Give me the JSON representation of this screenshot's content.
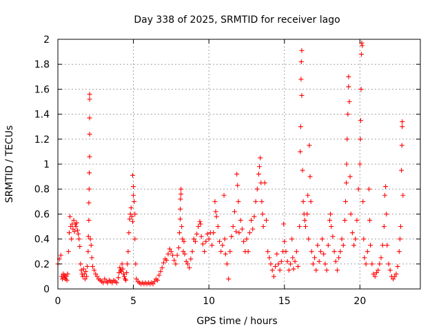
{
  "chart_data": {
    "type": "scatter",
    "title": "Day 338 of 2025, SRMTID for receiver lago",
    "xlabel": "GPS time / hours",
    "ylabel": "SRMTID / TECUs",
    "xlim": [
      0,
      24
    ],
    "ylim": [
      0,
      2
    ],
    "x_ticks": [
      0,
      5,
      10,
      15,
      20
    ],
    "x_tick_labels": [
      "0",
      "5",
      "10",
      "15",
      "20"
    ],
    "y_ticks": [
      0,
      0.2,
      0.4,
      0.6,
      0.8,
      1,
      1.2,
      1.4,
      1.6,
      1.8,
      2
    ],
    "y_tick_labels": [
      "0",
      "0.2",
      "0.4",
      "0.6",
      "0.8",
      "1",
      "1.2",
      "1.4",
      "1.6",
      "1.8",
      "2"
    ],
    "grid": true,
    "marker": "plus",
    "marker_color": "#ff0000",
    "series": [
      {
        "name": "SRMTID",
        "points": [
          [
            0.0,
            0.2
          ],
          [
            0.1,
            0.24
          ],
          [
            0.2,
            0.27
          ],
          [
            0.25,
            0.1
          ],
          [
            0.3,
            0.08
          ],
          [
            0.35,
            0.12
          ],
          [
            0.4,
            0.09
          ],
          [
            0.45,
            0.11
          ],
          [
            0.5,
            0.08
          ],
          [
            0.55,
            0.1
          ],
          [
            0.6,
            0.07
          ],
          [
            0.65,
            0.12
          ],
          [
            0.7,
            0.3
          ],
          [
            0.75,
            0.45
          ],
          [
            0.8,
            0.58
          ],
          [
            0.85,
            0.5
          ],
          [
            0.9,
            0.4
          ],
          [
            0.95,
            0.52
          ],
          [
            1.0,
            0.48
          ],
          [
            1.05,
            0.55
          ],
          [
            1.1,
            0.46
          ],
          [
            1.15,
            0.52
          ],
          [
            1.2,
            0.5
          ],
          [
            1.25,
            0.53
          ],
          [
            1.3,
            0.47
          ],
          [
            1.35,
            0.44
          ],
          [
            1.4,
            0.4
          ],
          [
            1.45,
            0.34
          ],
          [
            1.5,
            0.2
          ],
          [
            1.55,
            0.15
          ],
          [
            1.6,
            0.12
          ],
          [
            1.65,
            0.1
          ],
          [
            1.7,
            0.16
          ],
          [
            1.75,
            0.12
          ],
          [
            1.8,
            0.08
          ],
          [
            1.85,
            0.14
          ],
          [
            1.9,
            0.1
          ],
          [
            1.95,
            0.18
          ],
          [
            2.0,
            0.3
          ],
          [
            2.02,
            0.42
          ],
          [
            2.05,
            0.55
          ],
          [
            2.05,
            0.69
          ],
          [
            2.07,
            0.8
          ],
          [
            2.08,
            0.93
          ],
          [
            2.1,
            1.06
          ],
          [
            2.1,
            1.24
          ],
          [
            2.1,
            1.37
          ],
          [
            2.1,
            1.52
          ],
          [
            2.1,
            1.56
          ],
          [
            2.15,
            0.4
          ],
          [
            2.2,
            0.35
          ],
          [
            2.25,
            0.25
          ],
          [
            2.3,
            0.18
          ],
          [
            2.4,
            0.15
          ],
          [
            2.5,
            0.12
          ],
          [
            2.6,
            0.1
          ],
          [
            2.7,
            0.08
          ],
          [
            2.8,
            0.07
          ],
          [
            2.9,
            0.06
          ],
          [
            3.0,
            0.05
          ],
          [
            3.1,
            0.08
          ],
          [
            3.2,
            0.06
          ],
          [
            3.3,
            0.05
          ],
          [
            3.4,
            0.07
          ],
          [
            3.5,
            0.06
          ],
          [
            3.6,
            0.05
          ],
          [
            3.7,
            0.07
          ],
          [
            3.8,
            0.06
          ],
          [
            3.9,
            0.05
          ],
          [
            4.0,
            0.09
          ],
          [
            4.05,
            0.13
          ],
          [
            4.1,
            0.17
          ],
          [
            4.15,
            0.15
          ],
          [
            4.2,
            0.14
          ],
          [
            4.25,
            0.2
          ],
          [
            4.3,
            0.16
          ],
          [
            4.35,
            0.12
          ],
          [
            4.4,
            0.1
          ],
          [
            4.45,
            0.08
          ],
          [
            4.5,
            0.07
          ],
          [
            4.55,
            0.13
          ],
          [
            4.6,
            0.2
          ],
          [
            4.65,
            0.3
          ],
          [
            4.7,
            0.45
          ],
          [
            4.75,
            0.56
          ],
          [
            4.8,
            0.6
          ],
          [
            4.85,
            0.65
          ],
          [
            4.9,
            0.58
          ],
          [
            4.95,
            0.54
          ],
          [
            4.95,
            0.91
          ],
          [
            5.0,
            0.82
          ],
          [
            5.0,
            0.75
          ],
          [
            5.05,
            0.7
          ],
          [
            5.1,
            0.6
          ],
          [
            5.1,
            0.4
          ],
          [
            5.15,
            0.2
          ],
          [
            5.2,
            0.08
          ],
          [
            5.3,
            0.06
          ],
          [
            5.4,
            0.05
          ],
          [
            5.5,
            0.04
          ],
          [
            5.6,
            0.05
          ],
          [
            5.7,
            0.04
          ],
          [
            5.8,
            0.05
          ],
          [
            5.9,
            0.04
          ],
          [
            6.0,
            0.05
          ],
          [
            6.1,
            0.04
          ],
          [
            6.2,
            0.05
          ],
          [
            6.3,
            0.04
          ],
          [
            6.4,
            0.06
          ],
          [
            6.5,
            0.08
          ],
          [
            6.6,
            0.07
          ],
          [
            6.7,
            0.11
          ],
          [
            6.8,
            0.14
          ],
          [
            6.9,
            0.17
          ],
          [
            7.0,
            0.21
          ],
          [
            7.1,
            0.24
          ],
          [
            7.2,
            0.23
          ],
          [
            7.3,
            0.28
          ],
          [
            7.4,
            0.32
          ],
          [
            7.5,
            0.3
          ],
          [
            7.6,
            0.27
          ],
          [
            7.7,
            0.23
          ],
          [
            7.8,
            0.2
          ],
          [
            7.9,
            0.27
          ],
          [
            8.0,
            0.33
          ],
          [
            8.05,
            0.45
          ],
          [
            8.1,
            0.56
          ],
          [
            8.1,
            0.64
          ],
          [
            8.12,
            0.72
          ],
          [
            8.15,
            0.76
          ],
          [
            8.15,
            0.8
          ],
          [
            8.2,
            0.5
          ],
          [
            8.25,
            0.4
          ],
          [
            8.3,
            0.3
          ],
          [
            8.35,
            0.38
          ],
          [
            8.4,
            0.28
          ],
          [
            8.5,
            0.22
          ],
          [
            8.6,
            0.2
          ],
          [
            8.7,
            0.17
          ],
          [
            8.8,
            0.24
          ],
          [
            8.9,
            0.3
          ],
          [
            9.0,
            0.4
          ],
          [
            9.1,
            0.38
          ],
          [
            9.2,
            0.44
          ],
          [
            9.3,
            0.5
          ],
          [
            9.4,
            0.54
          ],
          [
            9.45,
            0.52
          ],
          [
            9.5,
            0.42
          ],
          [
            9.6,
            0.36
          ],
          [
            9.7,
            0.3
          ],
          [
            9.8,
            0.38
          ],
          [
            9.9,
            0.44
          ],
          [
            10.0,
            0.4
          ],
          [
            10.1,
            0.45
          ],
          [
            10.2,
            0.35
          ],
          [
            10.3,
            0.45
          ],
          [
            10.4,
            0.7
          ],
          [
            10.45,
            0.62
          ],
          [
            10.5,
            0.58
          ],
          [
            10.6,
            0.5
          ],
          [
            10.7,
            0.38
          ],
          [
            10.8,
            0.3
          ],
          [
            10.9,
            0.35
          ],
          [
            11.0,
            0.75
          ],
          [
            11.05,
            0.4
          ],
          [
            11.1,
            0.28
          ],
          [
            11.2,
            0.2
          ],
          [
            11.3,
            0.08
          ],
          [
            11.4,
            0.3
          ],
          [
            11.5,
            0.42
          ],
          [
            11.6,
            0.5
          ],
          [
            11.7,
            0.62
          ],
          [
            11.8,
            0.46
          ],
          [
            11.85,
            0.92
          ],
          [
            11.9,
            0.83
          ],
          [
            11.95,
            0.7
          ],
          [
            12.0,
            0.45
          ],
          [
            12.1,
            0.55
          ],
          [
            12.2,
            0.48
          ],
          [
            12.3,
            0.38
          ],
          [
            12.4,
            0.3
          ],
          [
            12.5,
            0.4
          ],
          [
            12.6,
            0.3
          ],
          [
            12.7,
            0.45
          ],
          [
            12.8,
            0.55
          ],
          [
            12.9,
            0.48
          ],
          [
            13.0,
            0.58
          ],
          [
            13.1,
            0.7
          ],
          [
            13.2,
            0.8
          ],
          [
            13.3,
            0.92
          ],
          [
            13.35,
            0.98
          ],
          [
            13.4,
            1.05
          ],
          [
            13.45,
            0.85
          ],
          [
            13.5,
            0.7
          ],
          [
            13.55,
            0.6
          ],
          [
            13.6,
            0.5
          ],
          [
            13.7,
            0.85
          ],
          [
            13.8,
            0.55
          ],
          [
            13.9,
            0.3
          ],
          [
            14.0,
            0.25
          ],
          [
            14.1,
            0.2
          ],
          [
            14.2,
            0.15
          ],
          [
            14.3,
            0.1
          ],
          [
            14.4,
            0.18
          ],
          [
            14.5,
            0.28
          ],
          [
            14.6,
            0.2
          ],
          [
            14.7,
            0.15
          ],
          [
            14.8,
            0.22
          ],
          [
            14.9,
            0.3
          ],
          [
            14.95,
            0.52
          ],
          [
            15.0,
            0.38
          ],
          [
            15.1,
            0.3
          ],
          [
            15.2,
            0.22
          ],
          [
            15.3,
            0.15
          ],
          [
            15.4,
            0.2
          ],
          [
            15.5,
            0.4
          ],
          [
            15.55,
            0.25
          ],
          [
            15.6,
            0.16
          ],
          [
            15.7,
            0.22
          ],
          [
            15.8,
            0.3
          ],
          [
            15.9,
            0.18
          ],
          [
            16.0,
            0.5
          ],
          [
            16.05,
            1.1
          ],
          [
            16.08,
            1.3
          ],
          [
            16.1,
            1.68
          ],
          [
            16.12,
            1.82
          ],
          [
            16.15,
            1.91
          ],
          [
            16.15,
            1.55
          ],
          [
            16.2,
            0.95
          ],
          [
            16.25,
            0.7
          ],
          [
            16.3,
            0.6
          ],
          [
            16.35,
            0.55
          ],
          [
            16.4,
            0.5
          ],
          [
            16.5,
            0.6
          ],
          [
            16.55,
            0.75
          ],
          [
            16.6,
            0.4
          ],
          [
            16.65,
            1.15
          ],
          [
            16.7,
            0.9
          ],
          [
            16.75,
            0.7
          ],
          [
            16.8,
            0.3
          ],
          [
            16.9,
            0.2
          ],
          [
            17.0,
            0.25
          ],
          [
            17.1,
            0.15
          ],
          [
            17.2,
            0.35
          ],
          [
            17.3,
            0.22
          ],
          [
            17.4,
            0.3
          ],
          [
            17.5,
            0.4
          ],
          [
            17.6,
            0.28
          ],
          [
            17.7,
            0.2
          ],
          [
            17.8,
            0.15
          ],
          [
            17.9,
            0.35
          ],
          [
            18.0,
            0.55
          ],
          [
            18.05,
            0.6
          ],
          [
            18.1,
            0.5
          ],
          [
            18.2,
            0.42
          ],
          [
            18.3,
            0.3
          ],
          [
            18.4,
            0.22
          ],
          [
            18.5,
            0.15
          ],
          [
            18.6,
            0.25
          ],
          [
            18.7,
            0.3
          ],
          [
            18.8,
            0.4
          ],
          [
            18.9,
            0.35
          ],
          [
            19.0,
            0.55
          ],
          [
            19.05,
            0.7
          ],
          [
            19.1,
            0.85
          ],
          [
            19.12,
            1.0
          ],
          [
            19.15,
            1.2
          ],
          [
            19.2,
            1.4
          ],
          [
            19.25,
            1.62
          ],
          [
            19.25,
            1.7
          ],
          [
            19.3,
            1.5
          ],
          [
            19.35,
            0.9
          ],
          [
            19.4,
            0.6
          ],
          [
            19.5,
            0.45
          ],
          [
            19.6,
            0.35
          ],
          [
            19.7,
            0.4
          ],
          [
            19.8,
            0.55
          ],
          [
            19.9,
            0.8
          ],
          [
            20.0,
            1.0
          ],
          [
            20.03,
            1.2
          ],
          [
            20.05,
            1.35
          ],
          [
            20.08,
            1.6
          ],
          [
            20.1,
            1.88
          ],
          [
            20.12,
            1.97
          ],
          [
            20.15,
            1.95
          ],
          [
            20.2,
            0.7
          ],
          [
            20.25,
            0.4
          ],
          [
            20.3,
            0.25
          ],
          [
            20.4,
            0.2
          ],
          [
            20.5,
            0.3
          ],
          [
            20.6,
            0.8
          ],
          [
            20.65,
            0.55
          ],
          [
            20.7,
            0.35
          ],
          [
            20.8,
            0.2
          ],
          [
            20.9,
            0.12
          ],
          [
            21.0,
            0.1
          ],
          [
            21.1,
            0.13
          ],
          [
            21.2,
            0.15
          ],
          [
            21.3,
            0.2
          ],
          [
            21.4,
            0.25
          ],
          [
            21.5,
            0.35
          ],
          [
            21.6,
            0.5
          ],
          [
            21.65,
            0.75
          ],
          [
            21.7,
            0.82
          ],
          [
            21.75,
            0.6
          ],
          [
            21.8,
            0.35
          ],
          [
            21.9,
            0.2
          ],
          [
            22.0,
            0.15
          ],
          [
            22.1,
            0.1
          ],
          [
            22.2,
            0.08
          ],
          [
            22.3,
            0.1
          ],
          [
            22.4,
            0.12
          ],
          [
            22.5,
            0.18
          ],
          [
            22.6,
            0.3
          ],
          [
            22.65,
            0.4
          ],
          [
            22.7,
            0.5
          ],
          [
            22.75,
            0.95
          ],
          [
            22.78,
            1.15
          ],
          [
            22.8,
            1.3
          ],
          [
            22.8,
            1.34
          ],
          [
            22.85,
            0.75
          ]
        ]
      }
    ]
  }
}
